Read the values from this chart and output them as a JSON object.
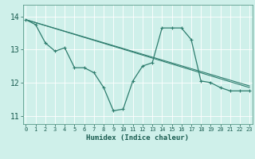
{
  "xlabel": "Humidex (Indice chaleur)",
  "background_color": "#cff0ea",
  "grid_color": "#ffffff",
  "line_color": "#2e7d6e",
  "xlim": [
    -0.3,
    23.3
  ],
  "ylim": [
    10.75,
    14.35
  ],
  "yticks": [
    11,
    12,
    13,
    14
  ],
  "xticks": [
    0,
    1,
    2,
    3,
    4,
    5,
    6,
    7,
    8,
    9,
    10,
    11,
    12,
    13,
    14,
    15,
    16,
    17,
    18,
    19,
    20,
    21,
    22,
    23
  ],
  "series1_x": [
    0,
    1,
    2,
    3,
    4,
    5,
    6,
    7,
    8,
    9,
    10,
    11,
    12,
    13,
    14,
    15,
    16,
    17,
    18,
    19,
    20,
    21,
    22,
    23
  ],
  "series1_y": [
    13.9,
    13.75,
    13.2,
    12.95,
    13.05,
    12.45,
    12.45,
    12.3,
    11.85,
    11.15,
    11.2,
    12.05,
    12.5,
    12.6,
    13.65,
    13.65,
    13.65,
    13.3,
    12.05,
    12.0,
    11.85,
    11.75,
    11.75,
    11.75
  ]
}
